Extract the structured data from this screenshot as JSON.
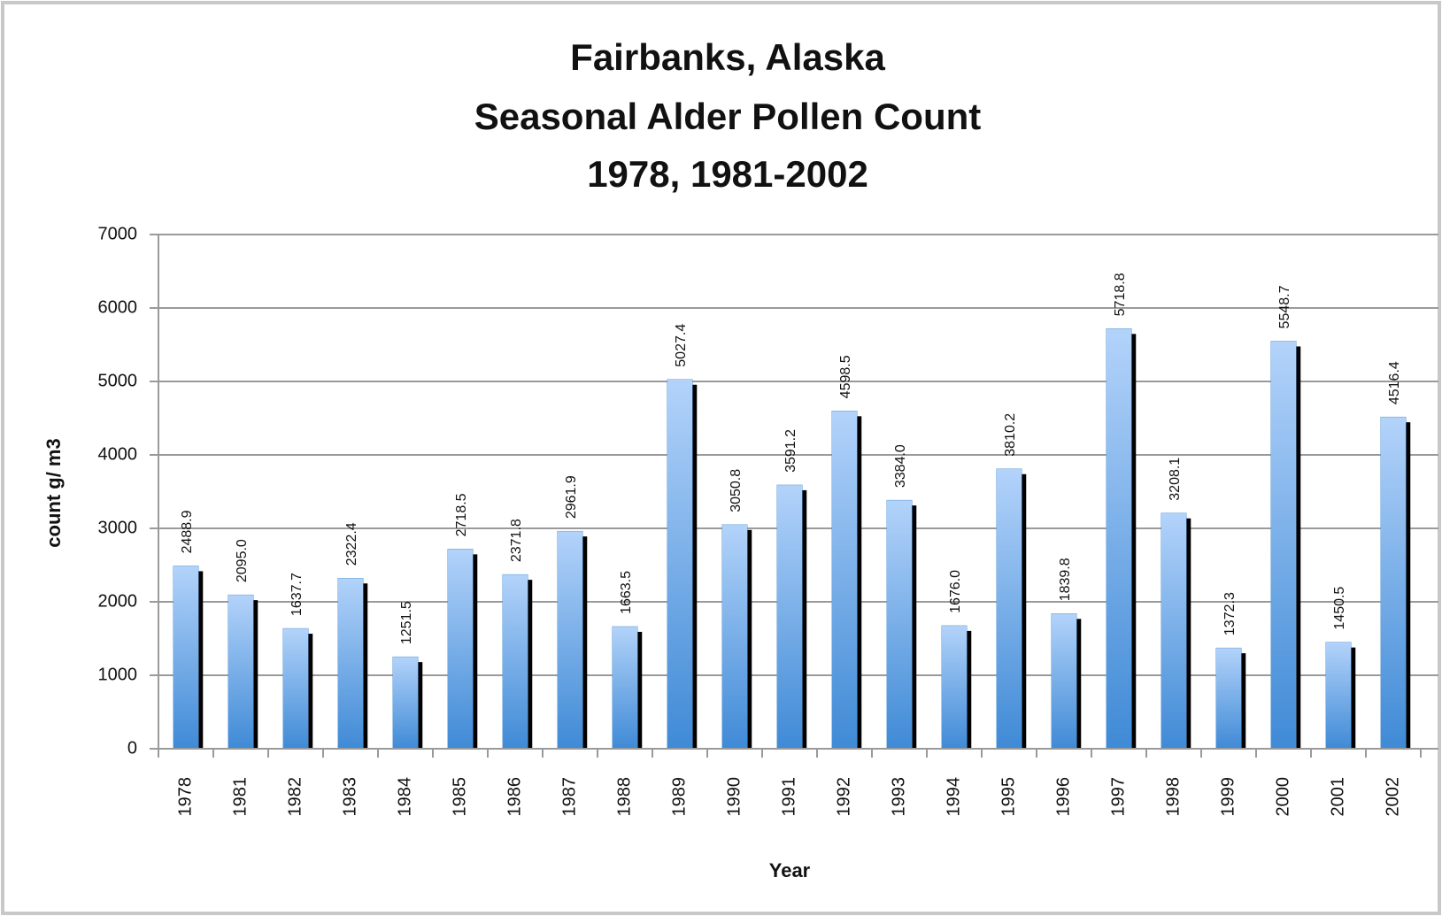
{
  "chart_data": {
    "type": "bar",
    "title": [
      "Fairbanks, Alaska",
      "Seasonal Alder Pollen Count",
      "1978, 1981-2002"
    ],
    "x_label": "Year",
    "y_label": "count g/ m3",
    "categories": [
      "1978",
      "1981",
      "1982",
      "1983",
      "1984",
      "1985",
      "1986",
      "1987",
      "1988",
      "1989",
      "1990",
      "1991",
      "1992",
      "1993",
      "1994",
      "1995",
      "1996",
      "1997",
      "1998",
      "1999",
      "2000",
      "2001",
      "2002"
    ],
    "values": [
      2488.9,
      2095.0,
      1637.7,
      2322.4,
      1251.5,
      2718.5,
      2371.8,
      2961.9,
      1663.5,
      5027.4,
      3050.8,
      3591.2,
      4598.5,
      3384.0,
      1676.0,
      3810.2,
      1839.8,
      5718.8,
      3208.1,
      1372.3,
      5548.7,
      1450.5,
      4516.4
    ],
    "value_labels": [
      "2488.9",
      "2095.0",
      "1637.7",
      "2322.4",
      "1251.5",
      "2718.5",
      "2371.8",
      "2961.9",
      "1663.5",
      "5027.4",
      "3050.8",
      "3591.2",
      "4598.5",
      "3384.0",
      "1676.0",
      "3810.2",
      "1839.8",
      "5718.8",
      "3208.1",
      "1372.3",
      "5548.7",
      "1450.5",
      "4516.4"
    ],
    "color": "#5b9bd5",
    "ylim": [
      0,
      7000
    ],
    "yticks": [
      0,
      1000,
      2000,
      3000,
      4000,
      5000,
      6000,
      7000
    ],
    "grid": true
  }
}
